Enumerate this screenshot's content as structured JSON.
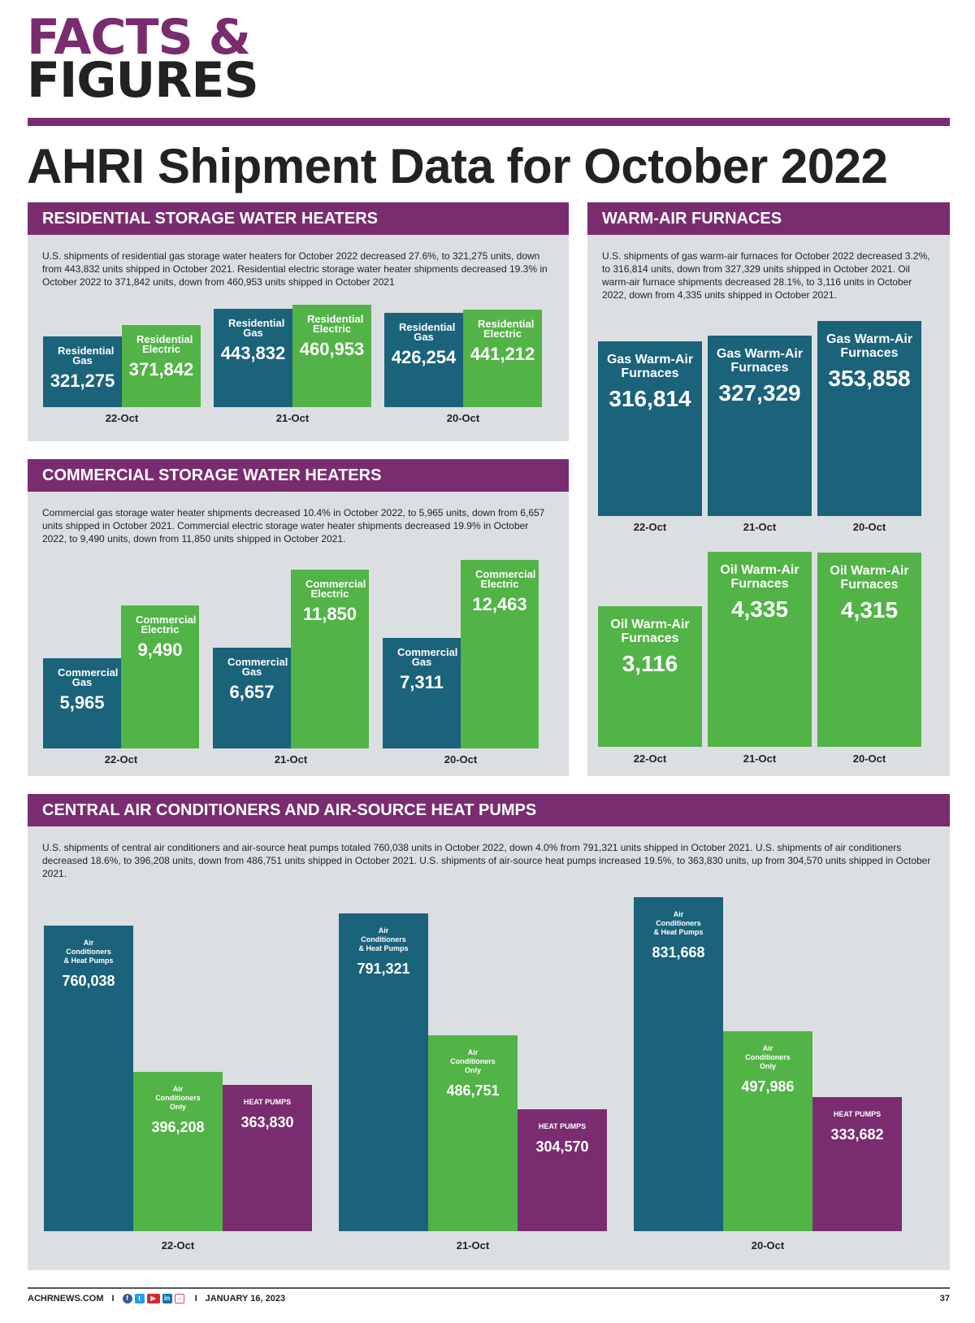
{
  "masthead": {
    "line1": "FACTS &",
    "line2": "FIGURES"
  },
  "title": "AHRI Shipment Data for October 2022",
  "colors": {
    "gas": "#1b627b",
    "electric": "#52b347",
    "heat_pumps": "#7a2c70",
    "header": "#7a2c70",
    "panel": "#dcdfe2"
  },
  "panels": {
    "residential": {
      "heading": "RESIDENTIAL STORAGE WATER HEATERS",
      "description": "U.S. shipments of residential gas storage water heaters for October 2022 decreased 27.6%, to 321,275 units, down from 443,832 units shipped in October 2021. Residential electric storage water heater shipments decreased 19.3% in October 2022 to 371,842 units, down from 460,953 units shipped in October 2021"
    },
    "commercial": {
      "heading": "COMMERCIAL STORAGE WATER HEATERS",
      "description": "Commercial gas storage water heater shipments decreased 10.4% in October 2022, to 5,965 units, down from 6,657 units shipped in October 2021. Commercial electric storage water heater shipments decreased 19.9% in October 2022, to 9,490 units, down from 11,850 units shipped in October 2021."
    },
    "furnaces": {
      "heading": "WARM-AIR FURNACES",
      "description": "U.S. shipments of gas warm-air furnaces for October 2022 decreased 3.2%, to 316,814 units, down from 327,329 units shipped in October 2021. Oil warm-air furnace shipments decreased 28.1%, to 3,116 units in October 2022, down from 4,335 units shipped in October 2021."
    },
    "central_ac": {
      "heading": "CENTRAL AIR CONDITIONERS AND AIR-SOURCE HEAT PUMPS",
      "description": "U.S. shipments of central air conditioners and air-source heat pumps totaled 760,038 units in October 2022, down 4.0% from 791,321 units shipped in October 2021. U.S. shipments of air conditioners decreased 18.6%, to 396,208 units, down from 486,751 units shipped in October 2021. U.S. shipments of air-source heat pumps increased 19.5%, to 363,830 units, up from 304,570 units shipped in October 2021."
    }
  },
  "chart_data": [
    {
      "id": "residential",
      "type": "bar",
      "title": "RESIDENTIAL STORAGE WATER HEATERS",
      "categories": [
        "22-Oct",
        "21-Oct",
        "20-Oct"
      ],
      "series": [
        {
          "name": "Residential Gas",
          "key": "gas",
          "values": [
            321275,
            443832,
            426254
          ],
          "labels": [
            "321,275",
            "443,832",
            "426,254"
          ]
        },
        {
          "name": "Residential Electric",
          "key": "electric",
          "values": [
            371842,
            460953,
            441212
          ],
          "labels": [
            "371,842",
            "460,953",
            "441,212"
          ]
        }
      ],
      "ylim": [
        0,
        470000
      ]
    },
    {
      "id": "commercial",
      "type": "bar",
      "title": "COMMERCIAL STORAGE WATER HEATERS",
      "categories": [
        "22-Oct",
        "21-Oct",
        "20-Oct"
      ],
      "series": [
        {
          "name": "Commercial Gas",
          "key": "gas",
          "values": [
            5965,
            6657,
            7311
          ],
          "labels": [
            "5,965",
            "6,657",
            "7,311"
          ]
        },
        {
          "name": "Commercial Electric",
          "key": "electric",
          "values": [
            9490,
            11850,
            12463
          ],
          "labels": [
            "9,490",
            "11,850",
            "12,463"
          ]
        }
      ],
      "ylim": [
        0,
        12800
      ]
    },
    {
      "id": "gas-furnaces",
      "type": "bar",
      "title": "WARM-AIR FURNACES",
      "categories": [
        "22-Oct",
        "21-Oct",
        "20-Oct"
      ],
      "series": [
        {
          "name": "Gas Warm-Air Furnaces",
          "key": "gas",
          "values": [
            316814,
            327329,
            353858
          ],
          "labels": [
            "316,814",
            "327,329",
            "353,858"
          ]
        }
      ],
      "ylim": [
        0,
        360000
      ]
    },
    {
      "id": "oil-furnaces",
      "type": "bar",
      "title": "WARM-AIR FURNACES",
      "categories": [
        "22-Oct",
        "21-Oct",
        "20-Oct"
      ],
      "series": [
        {
          "name": "Oil Warm-Air Furnaces",
          "key": "electric",
          "values": [
            3116,
            4335,
            4315
          ],
          "labels": [
            "3,116",
            "4,335",
            "4,315"
          ]
        }
      ],
      "ylim": [
        0,
        4420
      ]
    },
    {
      "id": "central-ac",
      "type": "bar",
      "title": "CENTRAL AIR CONDITIONERS AND AIR-SOURCE HEAT PUMPS",
      "categories": [
        "22-Oct",
        "21-Oct",
        "20-Oct"
      ],
      "series": [
        {
          "name": "Air Conditioners & Heat Pumps",
          "key": "gas",
          "values": [
            760038,
            791321,
            831668
          ],
          "labels": [
            "760,038",
            "791,321",
            "831,668"
          ]
        },
        {
          "name": "Air Conditioners Only",
          "key": "electric",
          "values": [
            396208,
            486751,
            497986
          ],
          "labels": [
            "396,208",
            "486,751",
            "497,986"
          ]
        },
        {
          "name": "HEAT PUMPS",
          "key": "hp",
          "values": [
            363830,
            304570,
            333682
          ],
          "labels": [
            "363,830",
            "304,570",
            "333,682"
          ]
        }
      ],
      "ylim": [
        0,
        850000
      ]
    }
  ],
  "footer": {
    "site": "ACHRNEWS.COM",
    "separator": "I",
    "social_icons": [
      "facebook-icon",
      "twitter-icon",
      "youtube-icon",
      "linkedin-icon",
      "instagram-icon"
    ],
    "date": "JANUARY 16, 2023",
    "page": "37"
  }
}
